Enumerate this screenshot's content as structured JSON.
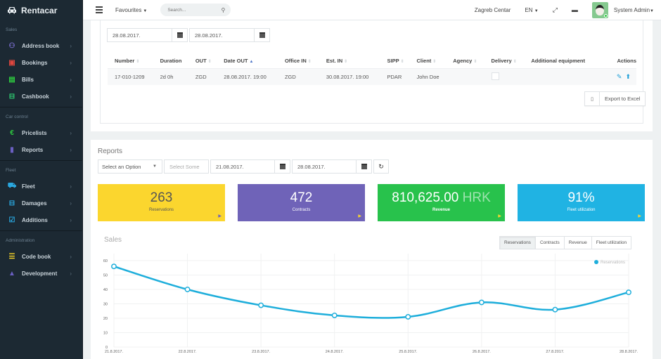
{
  "app": {
    "name": "Rentacar"
  },
  "sidebar": {
    "sections": [
      {
        "label": "Sales",
        "items": [
          {
            "label": "Address book",
            "icon": "address-book-icon",
            "color": "#7b6fd0"
          },
          {
            "label": "Bookings",
            "icon": "bookings-icon",
            "color": "#e0473f"
          },
          {
            "label": "Bills",
            "icon": "bills-icon",
            "color": "#2ecc40"
          },
          {
            "label": "Cashbook",
            "icon": "cashbook-icon",
            "color": "#2ecc71"
          }
        ]
      },
      {
        "label": "Car control",
        "items": [
          {
            "label": "Pricelists",
            "icon": "euro-icon",
            "color": "#2ecc40"
          },
          {
            "label": "Reports",
            "icon": "bar-chart-icon",
            "color": "#6a5fc1"
          }
        ]
      },
      {
        "label": "Fleet",
        "items": [
          {
            "label": "Fleet",
            "icon": "car-icon",
            "color": "#2aa8e0"
          },
          {
            "label": "Damages",
            "icon": "damages-icon",
            "color": "#2aa8e0"
          },
          {
            "label": "Additions",
            "icon": "checkbox-icon",
            "color": "#2aa8e0"
          }
        ]
      },
      {
        "label": "Administration",
        "items": [
          {
            "label": "Code book",
            "icon": "list-icon",
            "color": "#f5d328"
          },
          {
            "label": "Development",
            "icon": "user-icon",
            "color": "#6a5fc1"
          }
        ]
      }
    ]
  },
  "header": {
    "favourites": "Favourites",
    "search_placeholder": "Search...",
    "location": "Zagreb Centar",
    "language": "EN",
    "user": "System Admin"
  },
  "bookings": {
    "date_from": "28.08.2017.",
    "date_to": "28.08.2017.",
    "columns": [
      "Number",
      "Duration",
      "OUT",
      "Date OUT",
      "Office IN",
      "Est. IN",
      "SIPP",
      "Client",
      "Agency",
      "Delivery",
      "Additional equipment",
      "Actions"
    ],
    "rows": [
      {
        "number": "17-010-1209",
        "duration": "2d 0h",
        "out": "ZGD",
        "date_out": "28.08.2017. 19:00",
        "office_in": "ZGD",
        "est_in": "30.08.2017. 19:00",
        "sipp": "PDAR",
        "client": "John Doe",
        "agency": "",
        "delivery": false,
        "additional_equipment": ""
      }
    ],
    "export_label": "Export to Excel"
  },
  "reports": {
    "title": "Reports",
    "select_option": "Select an Option",
    "select_some": "Select Some",
    "date_from": "21.08.2017.",
    "date_to": "28.08.2017.",
    "tiles": [
      {
        "value": "263",
        "unit": "",
        "label": "Reservations",
        "bg": "#fbd62e",
        "fg": "#555555",
        "arrow": "#6a5fc1"
      },
      {
        "value": "472",
        "unit": "",
        "label": "Contracts",
        "bg": "#6f63b8",
        "fg": "#ffffff",
        "arrow": "#fbd62e"
      },
      {
        "value": "810,625.00",
        "unit": "HRK",
        "label": "Revenue",
        "bg": "#28c24c",
        "fg": "#ffffff",
        "arrow": "#fbd62e"
      },
      {
        "value": "91%",
        "unit": "",
        "label": "Fleet utilization",
        "bg": "#20b3e3",
        "fg": "#ffffff",
        "arrow": "#fbd62e"
      }
    ]
  },
  "sales": {
    "title": "Sales",
    "tabs": [
      "Reservations",
      "Contracts",
      "Revenue",
      "Fleet utilization"
    ],
    "active_tab": "Reservations"
  },
  "chart_data": {
    "type": "line",
    "title": "Sales",
    "categories": [
      "21.8.2017.",
      "22.8.2017.",
      "23.8.2017.",
      "24.8.2017.",
      "25.8.2017.",
      "26.8.2017.",
      "27.8.2017.",
      "28.8.2017."
    ],
    "series": [
      {
        "name": "Reservations",
        "color": "#1eaedb",
        "values": [
          56,
          40,
          29,
          22,
          21,
          31,
          26,
          38
        ]
      }
    ],
    "yticks": [
      0,
      10,
      20,
      30,
      40,
      50,
      60
    ],
    "ylim": [
      0,
      60
    ],
    "grid": true,
    "legend_position": "top-right",
    "xlabel": "",
    "ylabel": ""
  }
}
